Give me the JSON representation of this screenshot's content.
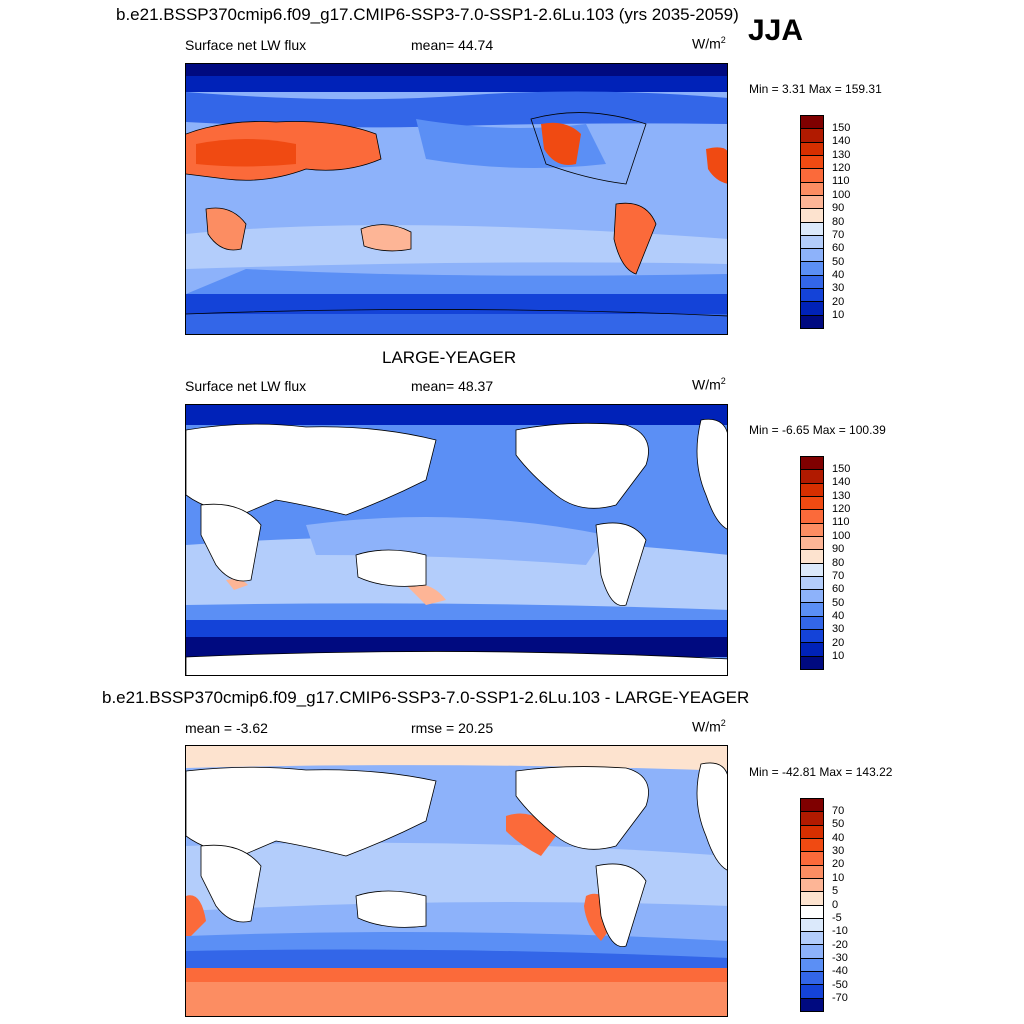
{
  "season": "JJA",
  "panels": [
    {
      "id": "case",
      "title": "b.e21.BSSP370cmip6.f09_g17.CMIP6-SSP3-7.0-SSP1-2.6Lu.103 (yrs 2035-2059)",
      "left_label": "Surface net LW flux",
      "center_label": "mean=  44.74",
      "units": "W/m",
      "units_sup": "2",
      "minmax": "Min =   3.31 Max = 159.31",
      "colorbar": {
        "ticks": [
          "150",
          "140",
          "130",
          "120",
          "110",
          "100",
          "90",
          "80",
          "70",
          "60",
          "50",
          "40",
          "30",
          "20",
          "10"
        ],
        "colors": [
          "#7f0000",
          "#b11a00",
          "#d62f00",
          "#f04a12",
          "#fb6a3a",
          "#fc8d62",
          "#fdb596",
          "#fde3cf",
          "#dbe9fb",
          "#b3cdfb",
          "#8db2fa",
          "#5b8ff5",
          "#3366e8",
          "#1443d8",
          "#0022b8",
          "#000a80"
        ]
      }
    },
    {
      "id": "obs",
      "title": "LARGE-YEAGER",
      "left_label": "Surface net LW flux",
      "center_label": "mean=  48.37",
      "units": "W/m",
      "units_sup": "2",
      "minmax": "Min =  -6.65 Max = 100.39",
      "colorbar": {
        "ticks": [
          "150",
          "140",
          "130",
          "120",
          "110",
          "100",
          "90",
          "80",
          "70",
          "60",
          "50",
          "40",
          "30",
          "20",
          "10"
        ],
        "colors": [
          "#7f0000",
          "#b11a00",
          "#d62f00",
          "#f04a12",
          "#fb6a3a",
          "#fc8d62",
          "#fdb596",
          "#fde3cf",
          "#dbe9fb",
          "#b3cdfb",
          "#8db2fa",
          "#5b8ff5",
          "#3366e8",
          "#1443d8",
          "#0022b8",
          "#000a80"
        ]
      }
    },
    {
      "id": "diff",
      "title": "b.e21.BSSP370cmip6.f09_g17.CMIP6-SSP3-7.0-SSP1-2.6Lu.103 - LARGE-YEAGER",
      "left_label": "mean =  -3.62",
      "center_label": "rmse =  20.25",
      "units": "W/m",
      "units_sup": "2",
      "minmax": "Min = -42.81 Max = 143.22",
      "colorbar": {
        "ticks": [
          "70",
          "50",
          "40",
          "30",
          "20",
          "10",
          "5",
          "0",
          "-5",
          "-10",
          "-20",
          "-30",
          "-40",
          "-50",
          "-70"
        ],
        "colors": [
          "#7f0000",
          "#b11a00",
          "#d62f00",
          "#f04a12",
          "#fb6a3a",
          "#fc8d62",
          "#fdb596",
          "#fde3cf",
          "#ffffff",
          "#dbe9fb",
          "#b3cdfb",
          "#8db2fa",
          "#5b8ff5",
          "#3366e8",
          "#1443d8",
          "#000a80"
        ]
      }
    }
  ]
}
